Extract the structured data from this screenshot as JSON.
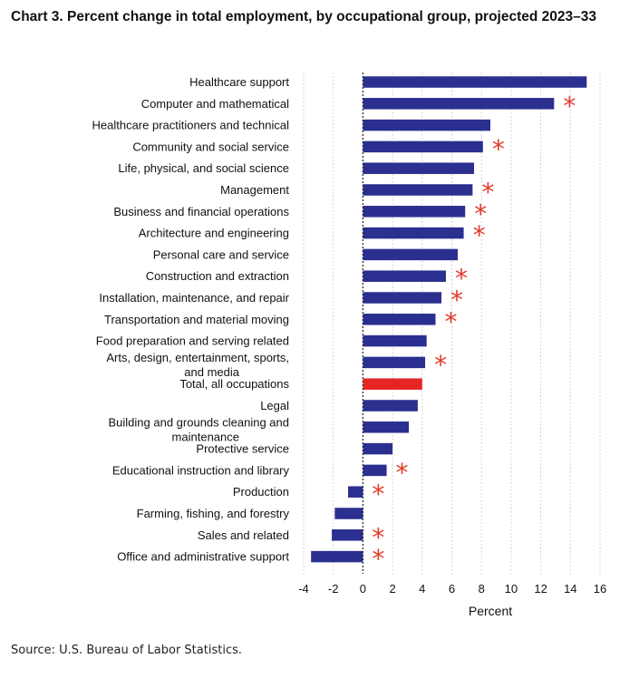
{
  "title": "Chart 3. Percent change in total employment, by occupational group, projected 2023–33",
  "source": "Source: U.S. Bureau of Labor Statistics.",
  "colors": {
    "bar": "#2b2f8f",
    "highlight": "#e62424",
    "star": "#e23b2a",
    "grid": "#c8c8c8"
  },
  "chart_data": {
    "type": "bar",
    "orientation": "horizontal",
    "xlabel": "Percent",
    "xlim": [
      -4,
      16
    ],
    "xticks": [
      "-4",
      "-2",
      "0",
      "2",
      "4",
      "6",
      "8",
      "10",
      "12",
      "14",
      "16"
    ],
    "grid": true,
    "marker_symbol": "*",
    "categories": [
      "Healthcare support",
      "Computer and mathematical",
      "Healthcare practitioners and technical",
      "Community and social service",
      "Life, physical, and social science",
      "Management",
      "Business and financial operations",
      "Architecture and engineering",
      "Personal care and service",
      "Construction and extraction",
      "Installation, maintenance, and repair",
      "Transportation and material moving",
      "Food preparation and serving related",
      "Arts, design, entertainment, sports, and media",
      "Total, all occupations",
      "Legal",
      "Building and grounds cleaning and maintenance",
      "Protective service",
      "Educational instruction and library",
      "Production",
      "Farming, fishing, and forestry",
      "Sales and related",
      "Office and administrative support"
    ],
    "values": [
      15.1,
      12.9,
      8.6,
      8.1,
      7.5,
      7.4,
      6.9,
      6.8,
      6.4,
      5.6,
      5.3,
      4.9,
      4.3,
      4.2,
      4.0,
      3.7,
      3.1,
      2.0,
      1.6,
      -1.0,
      -1.9,
      -2.1,
      -3.5
    ],
    "starred": [
      false,
      true,
      false,
      true,
      false,
      true,
      true,
      true,
      false,
      true,
      true,
      true,
      false,
      true,
      false,
      false,
      false,
      false,
      true,
      true,
      false,
      true,
      true
    ],
    "highlighted": [
      false,
      false,
      false,
      false,
      false,
      false,
      false,
      false,
      false,
      false,
      false,
      false,
      false,
      false,
      true,
      false,
      false,
      false,
      false,
      false,
      false,
      false,
      false
    ]
  }
}
